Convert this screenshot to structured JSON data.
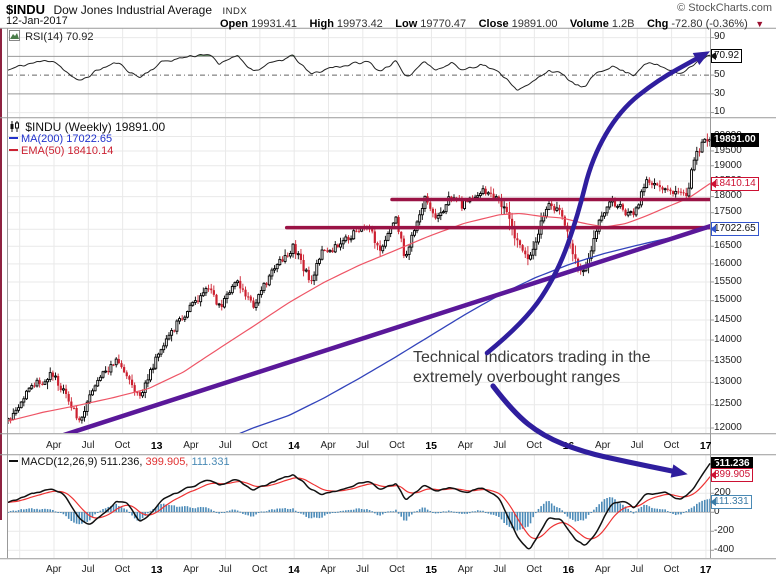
{
  "header": {
    "symbol": "$INDU",
    "name": "Dow Jones Industrial Average",
    "exchange": "INDX",
    "copyright": "© StockCharts.com",
    "date": "12-Jan-2017",
    "quote": {
      "open_label": "Open",
      "open": "19931.41",
      "high_label": "High",
      "high": "19973.42",
      "low_label": "Low",
      "low": "19770.47",
      "close_label": "Close",
      "close": "19891.00",
      "volume_label": "Volume",
      "volume": "1.2B",
      "chg_label": "Chg",
      "chg": "-72.80 (-0.36%)",
      "chg_arrow": "▼"
    }
  },
  "panels": {
    "rsi": {
      "label": "RSI(14) 70.92",
      "last_value": "70.92",
      "ticks": [
        90,
        50,
        30,
        10
      ]
    },
    "main": {
      "label": "$INDU (Weekly) 19891.00",
      "ma_label": "MA(200) 17022.65",
      "ema_label": "EMA(50) 18410.14",
      "last_close": "19891.00",
      "ema_value": "18410.14",
      "ma_value": "17022.65",
      "ticks": [
        20000,
        19500,
        19000,
        18500,
        18000,
        17500,
        17000,
        16500,
        16000,
        15500,
        15000,
        14500,
        14000,
        13500,
        13000,
        12500,
        12000
      ]
    },
    "macd": {
      "label": "MACD(12,26,9) 511.236,",
      "signal_text": "399.905,",
      "hist_text": "111.331",
      "macd_value": "511.236",
      "signal_value": "399.905",
      "hist_value": "111.331",
      "ticks": [
        200,
        0,
        -200,
        -400
      ]
    }
  },
  "x_axis": {
    "labels": [
      {
        "text": "Apr",
        "bold": false
      },
      {
        "text": "Jul",
        "bold": false
      },
      {
        "text": "Oct",
        "bold": false
      },
      {
        "text": "13",
        "bold": true
      },
      {
        "text": "Apr",
        "bold": false
      },
      {
        "text": "Jul",
        "bold": false
      },
      {
        "text": "Oct",
        "bold": false
      },
      {
        "text": "14",
        "bold": true
      },
      {
        "text": "Apr",
        "bold": false
      },
      {
        "text": "Jul",
        "bold": false
      },
      {
        "text": "Oct",
        "bold": false
      },
      {
        "text": "15",
        "bold": true
      },
      {
        "text": "Apr",
        "bold": false
      },
      {
        "text": "Jul",
        "bold": false
      },
      {
        "text": "Oct",
        "bold": false
      },
      {
        "text": "16",
        "bold": true
      },
      {
        "text": "Apr",
        "bold": false
      },
      {
        "text": "Jul",
        "bold": false
      },
      {
        "text": "Oct",
        "bold": false
      },
      {
        "text": "17",
        "bold": true
      }
    ]
  },
  "annotation": {
    "line1": "Technical Indicators trading in the",
    "line2": "extremely overbought ranges"
  },
  "colors": {
    "up_candle": "#000000",
    "down_candle": "#cc2030",
    "ma200": "#3344bb",
    "ema50": "#ee5566",
    "resistance": "#9a1345",
    "trendline": "#5a1899",
    "arrow": "#2f1e9e",
    "rsi_line": "#222222",
    "rsi_fill": "#679067",
    "macd_line": "#111111",
    "macd_signal": "#ee3333",
    "macd_hist": "#4c8bb8",
    "grid": "#e9e9e9",
    "frame": "#999999",
    "left_stripe": "#8e2240"
  },
  "chart_data": [
    {
      "type": "line",
      "name": "RSI(14)",
      "ylim": [
        5,
        100
      ],
      "levels": [
        70,
        50,
        30
      ],
      "last": 70.92,
      "anchors": [
        [
          0,
          55
        ],
        [
          0.03,
          62
        ],
        [
          0.065,
          66
        ],
        [
          0.1,
          42
        ],
        [
          0.13,
          56
        ],
        [
          0.155,
          63
        ],
        [
          0.187,
          47
        ],
        [
          0.22,
          64
        ],
        [
          0.26,
          70
        ],
        [
          0.285,
          73
        ],
        [
          0.301,
          60
        ],
        [
          0.325,
          72
        ],
        [
          0.35,
          54
        ],
        [
          0.382,
          64
        ],
        [
          0.407,
          70
        ],
        [
          0.431,
          50
        ],
        [
          0.46,
          58
        ],
        [
          0.513,
          64
        ],
        [
          0.529,
          54
        ],
        [
          0.553,
          65
        ],
        [
          0.566,
          45
        ],
        [
          0.594,
          66
        ],
        [
          0.61,
          55
        ],
        [
          0.634,
          63
        ],
        [
          0.646,
          55
        ],
        [
          0.675,
          62
        ],
        [
          0.708,
          48
        ],
        [
          0.727,
          34
        ],
        [
          0.743,
          39
        ],
        [
          0.77,
          56
        ],
        [
          0.789,
          50
        ],
        [
          0.809,
          39
        ],
        [
          0.822,
          36
        ],
        [
          0.838,
          52
        ],
        [
          0.859,
          60
        ],
        [
          0.879,
          53
        ],
        [
          0.892,
          50
        ],
        [
          0.908,
          64
        ],
        [
          0.936,
          57
        ],
        [
          0.957,
          51
        ],
        [
          0.976,
          62
        ],
        [
          0.992,
          69
        ],
        [
          1,
          70.92
        ]
      ]
    },
    {
      "type": "candlestick",
      "name": "$INDU weekly",
      "ylog": true,
      "ylim": [
        11890,
        20650
      ],
      "weeks": 267,
      "last_close": 19891.0,
      "close_anchors": [
        [
          0,
          12150
        ],
        [
          0.033,
          12880
        ],
        [
          0.065,
          13180
        ],
        [
          0.089,
          12480
        ],
        [
          0.101,
          12160
        ],
        [
          0.13,
          13060
        ],
        [
          0.155,
          13560
        ],
        [
          0.187,
          12620
        ],
        [
          0.212,
          13580
        ],
        [
          0.244,
          14480
        ],
        [
          0.285,
          15340
        ],
        [
          0.301,
          14810
        ],
        [
          0.325,
          15580
        ],
        [
          0.35,
          14870
        ],
        [
          0.382,
          15980
        ],
        [
          0.407,
          16480
        ],
        [
          0.431,
          15460
        ],
        [
          0.447,
          16330
        ],
        [
          0.464,
          16420
        ],
        [
          0.496,
          16900
        ],
        [
          0.513,
          17060
        ],
        [
          0.529,
          16420
        ],
        [
          0.553,
          17260
        ],
        [
          0.566,
          16120
        ],
        [
          0.594,
          17940
        ],
        [
          0.61,
          17260
        ],
        [
          0.634,
          18090
        ],
        [
          0.646,
          17710
        ],
        [
          0.675,
          18240
        ],
        [
          0.708,
          17690
        ],
        [
          0.727,
          16480
        ],
        [
          0.743,
          16130
        ],
        [
          0.77,
          17830
        ],
        [
          0.789,
          17420
        ],
        [
          0.809,
          16000
        ],
        [
          0.822,
          15760
        ],
        [
          0.838,
          16990
        ],
        [
          0.859,
          17880
        ],
        [
          0.879,
          17520
        ],
        [
          0.892,
          17410
        ],
        [
          0.908,
          18480
        ],
        [
          0.936,
          18210
        ],
        [
          0.957,
          18140
        ],
        [
          0.968,
          18050
        ],
        [
          0.976,
          19130
        ],
        [
          0.992,
          19830
        ],
        [
          1,
          19891
        ]
      ],
      "ma200_anchors": [
        [
          0,
          10400
        ],
        [
          0.2,
          11150
        ],
        [
          0.3,
          11700
        ],
        [
          0.35,
          12000
        ],
        [
          0.4,
          12260
        ],
        [
          0.45,
          12640
        ],
        [
          0.5,
          13080
        ],
        [
          0.55,
          13560
        ],
        [
          0.6,
          14080
        ],
        [
          0.65,
          14620
        ],
        [
          0.7,
          15140
        ],
        [
          0.75,
          15600
        ],
        [
          0.8,
          15980
        ],
        [
          0.85,
          16290
        ],
        [
          0.9,
          16540
        ],
        [
          0.95,
          16770
        ],
        [
          1,
          17022.65
        ]
      ],
      "ema50_anchors": [
        [
          0,
          12140
        ],
        [
          0.05,
          12330
        ],
        [
          0.1,
          12480
        ],
        [
          0.15,
          12650
        ],
        [
          0.2,
          12850
        ],
        [
          0.25,
          13230
        ],
        [
          0.3,
          13780
        ],
        [
          0.35,
          14340
        ],
        [
          0.4,
          14940
        ],
        [
          0.45,
          15480
        ],
        [
          0.5,
          15950
        ],
        [
          0.55,
          16360
        ],
        [
          0.6,
          16790
        ],
        [
          0.65,
          17170
        ],
        [
          0.7,
          17430
        ],
        [
          0.73,
          17470
        ],
        [
          0.76,
          17380
        ],
        [
          0.79,
          17330
        ],
        [
          0.82,
          17170
        ],
        [
          0.85,
          17060
        ],
        [
          0.88,
          17160
        ],
        [
          0.91,
          17400
        ],
        [
          0.94,
          17680
        ],
        [
          0.97,
          17950
        ],
        [
          1,
          18410.14
        ]
      ],
      "overlays": {
        "trendline": {
          "from": [
            0.08,
            11850
          ],
          "to": [
            1.0,
            17080
          ]
        },
        "resistance": [
          {
            "price": 17900,
            "t1": 0.547,
            "t2": 1.0
          },
          {
            "price": 17040,
            "t1": 0.397,
            "t2": 1.0
          }
        ],
        "arrow_to_rsi": [
          [
            487,
            353
          ],
          [
            525,
            322
          ],
          [
            558,
            272
          ],
          [
            578,
            215
          ],
          [
            592,
            158
          ],
          [
            620,
            110
          ],
          [
            658,
            80
          ],
          [
            696,
            59
          ]
        ],
        "arrow_to_macd": [
          [
            493,
            386
          ],
          [
            513,
            412
          ],
          [
            543,
            436
          ],
          [
            583,
            452
          ],
          [
            628,
            462
          ],
          [
            672,
            471
          ]
        ]
      }
    },
    {
      "type": "macd",
      "name": "MACD(12,26,9)",
      "ylim": [
        -484,
        600
      ],
      "last": [
        511.236,
        399.905,
        111.331
      ],
      "macd_anchors": [
        [
          0,
          100
        ],
        [
          0.03,
          180
        ],
        [
          0.065,
          245
        ],
        [
          0.08,
          185
        ],
        [
          0.1,
          -60
        ],
        [
          0.115,
          -145
        ],
        [
          0.13,
          -60
        ],
        [
          0.155,
          115
        ],
        [
          0.17,
          85
        ],
        [
          0.187,
          -95
        ],
        [
          0.2,
          -40
        ],
        [
          0.22,
          125
        ],
        [
          0.26,
          265
        ],
        [
          0.285,
          335
        ],
        [
          0.3,
          280
        ],
        [
          0.325,
          345
        ],
        [
          0.35,
          230
        ],
        [
          0.38,
          320
        ],
        [
          0.407,
          400
        ],
        [
          0.43,
          250
        ],
        [
          0.447,
          185
        ],
        [
          0.47,
          220
        ],
        [
          0.5,
          300
        ],
        [
          0.513,
          330
        ],
        [
          0.53,
          240
        ],
        [
          0.553,
          300
        ],
        [
          0.566,
          125
        ],
        [
          0.594,
          285
        ],
        [
          0.61,
          220
        ],
        [
          0.634,
          260
        ],
        [
          0.65,
          200
        ],
        [
          0.675,
          260
        ],
        [
          0.7,
          145
        ],
        [
          0.727,
          -285
        ],
        [
          0.743,
          -400
        ],
        [
          0.755,
          -255
        ],
        [
          0.77,
          -55
        ],
        [
          0.789,
          -85
        ],
        [
          0.809,
          -300
        ],
        [
          0.822,
          -360
        ],
        [
          0.838,
          -215
        ],
        [
          0.859,
          85
        ],
        [
          0.879,
          120
        ],
        [
          0.892,
          40
        ],
        [
          0.908,
          185
        ],
        [
          0.936,
          200
        ],
        [
          0.957,
          130
        ],
        [
          0.976,
          235
        ],
        [
          0.992,
          425
        ],
        [
          1,
          511.236
        ]
      ]
    }
  ]
}
